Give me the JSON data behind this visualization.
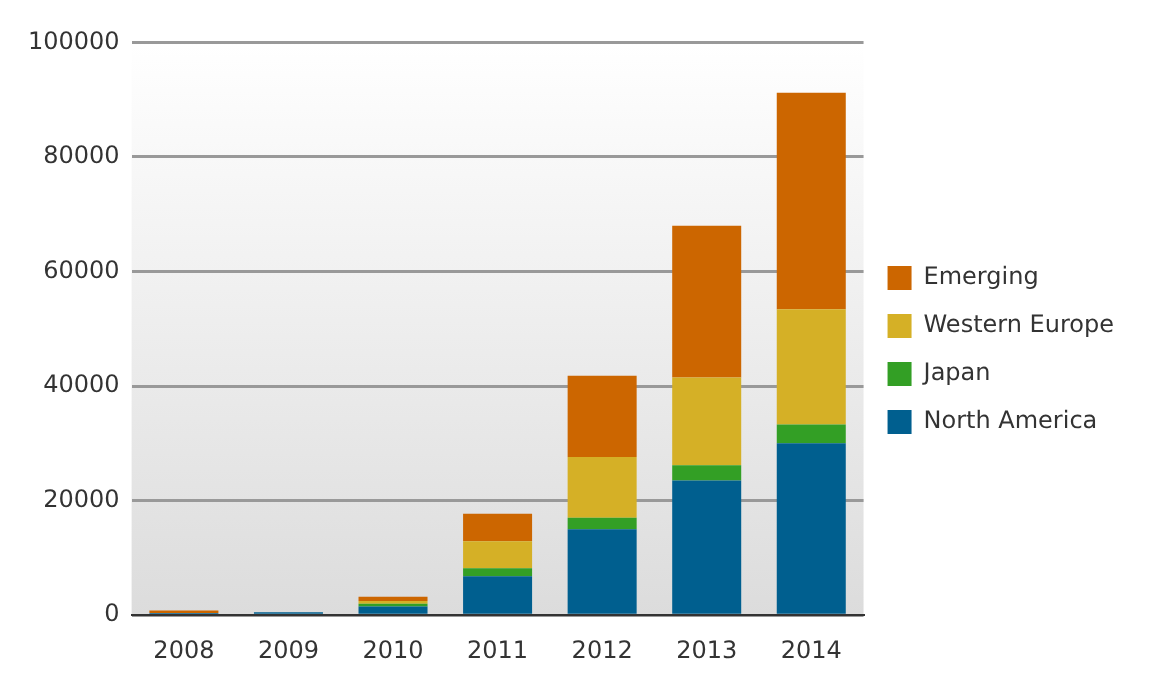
{
  "chart_data": {
    "type": "bar",
    "stacked": true,
    "categories": [
      "2008",
      "2009",
      "2010",
      "2011",
      "2012",
      "2013",
      "2014"
    ],
    "series": [
      {
        "name": "North America",
        "color": "#005f8f",
        "values": [
          400,
          500,
          1500,
          6800,
          15000,
          23500,
          30000
        ]
      },
      {
        "name": "Japan",
        "color": "#339f25",
        "values": [
          null,
          null,
          500,
          1400,
          2000,
          2700,
          3300
        ]
      },
      {
        "name": "Western Europe",
        "color": "#d5b026",
        "values": [
          null,
          null,
          500,
          4700,
          10600,
          15300,
          20100
        ]
      },
      {
        "name": "Emerging",
        "color": "#cc6600",
        "values": [
          400,
          null,
          700,
          4800,
          14200,
          26500,
          37800
        ]
      }
    ],
    "ylim": [
      0,
      100000
    ],
    "yticks": [
      0,
      20000,
      40000,
      60000,
      80000,
      100000
    ],
    "grid": "y",
    "legend": "right"
  }
}
